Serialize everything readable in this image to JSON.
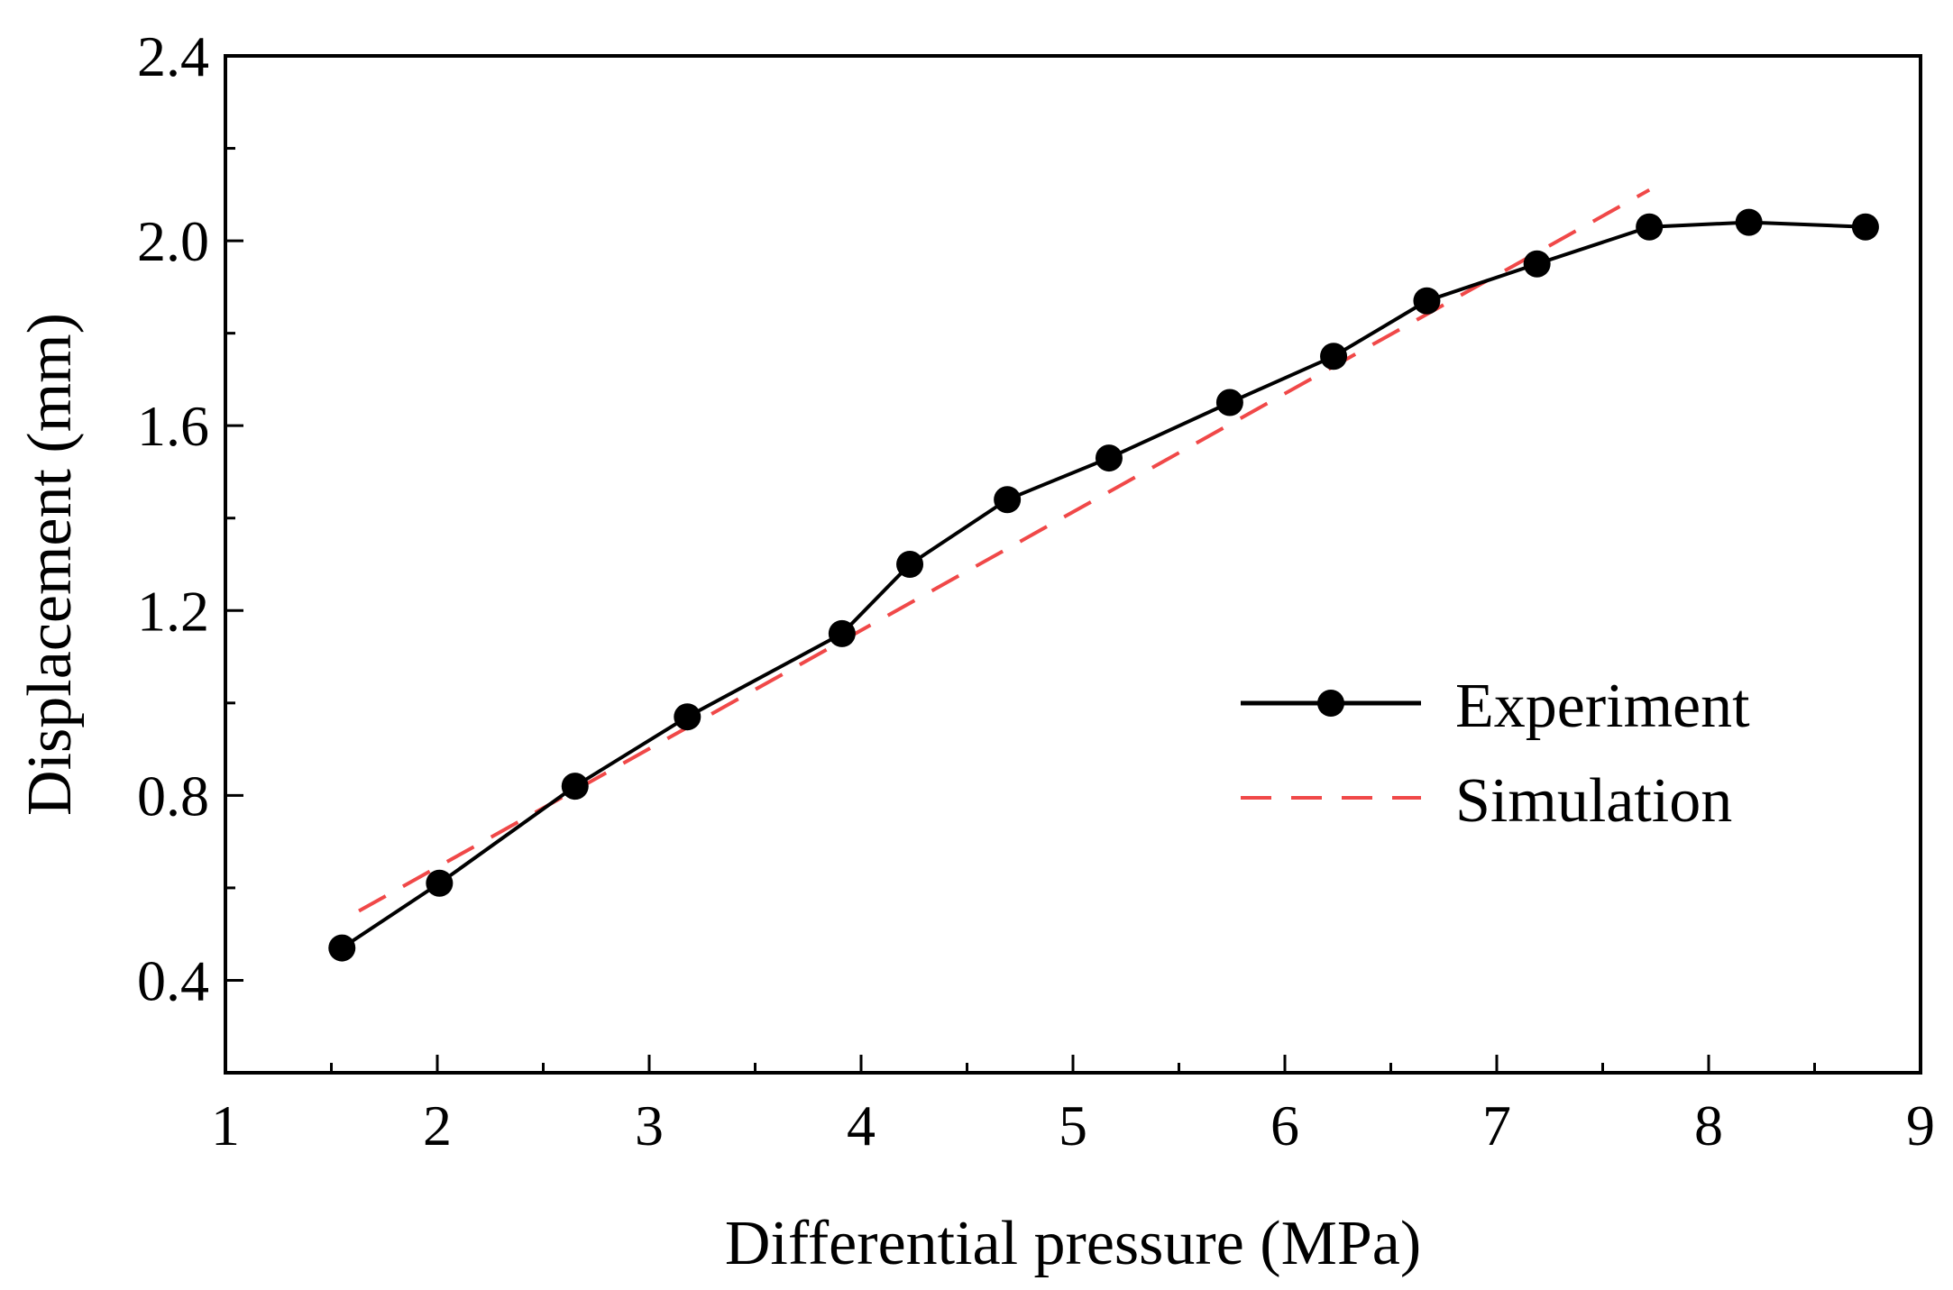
{
  "chart_data": {
    "type": "line",
    "title": "",
    "xlabel": "Differential pressure (MPa)",
    "ylabel": "Displacement (mm)",
    "xlim": [
      1,
      9
    ],
    "ylim": [
      0.2,
      2.4
    ],
    "x_ticks": [
      1,
      2,
      3,
      4,
      5,
      6,
      7,
      8,
      9
    ],
    "x_tick_labels": [
      "1",
      "2",
      "3",
      "4",
      "5",
      "6",
      "7",
      "8",
      "9"
    ],
    "y_ticks": [
      0.4,
      0.8,
      1.2,
      1.6,
      2.0,
      2.4
    ],
    "y_tick_labels": [
      "0.4",
      "0.8",
      "1.2",
      "1.6",
      "2.0",
      "2.4"
    ],
    "grid": false,
    "legend_position": "center-right",
    "series": [
      {
        "name": "Experiment",
        "style": "solid-marker",
        "color": "#000000",
        "x": [
          1.55,
          2.01,
          2.65,
          3.18,
          3.91,
          4.23,
          4.69,
          5.17,
          5.74,
          6.23,
          6.67,
          7.19,
          7.72,
          8.19,
          8.74
        ],
        "y": [
          0.47,
          0.61,
          0.82,
          0.97,
          1.15,
          1.3,
          1.44,
          1.53,
          1.65,
          1.75,
          1.87,
          1.95,
          2.03,
          2.04,
          2.03
        ]
      },
      {
        "name": "Simulation",
        "style": "dashed",
        "color": "#f04848",
        "x": [
          1.63,
          7.72
        ],
        "y": [
          0.55,
          2.11
        ]
      }
    ]
  }
}
